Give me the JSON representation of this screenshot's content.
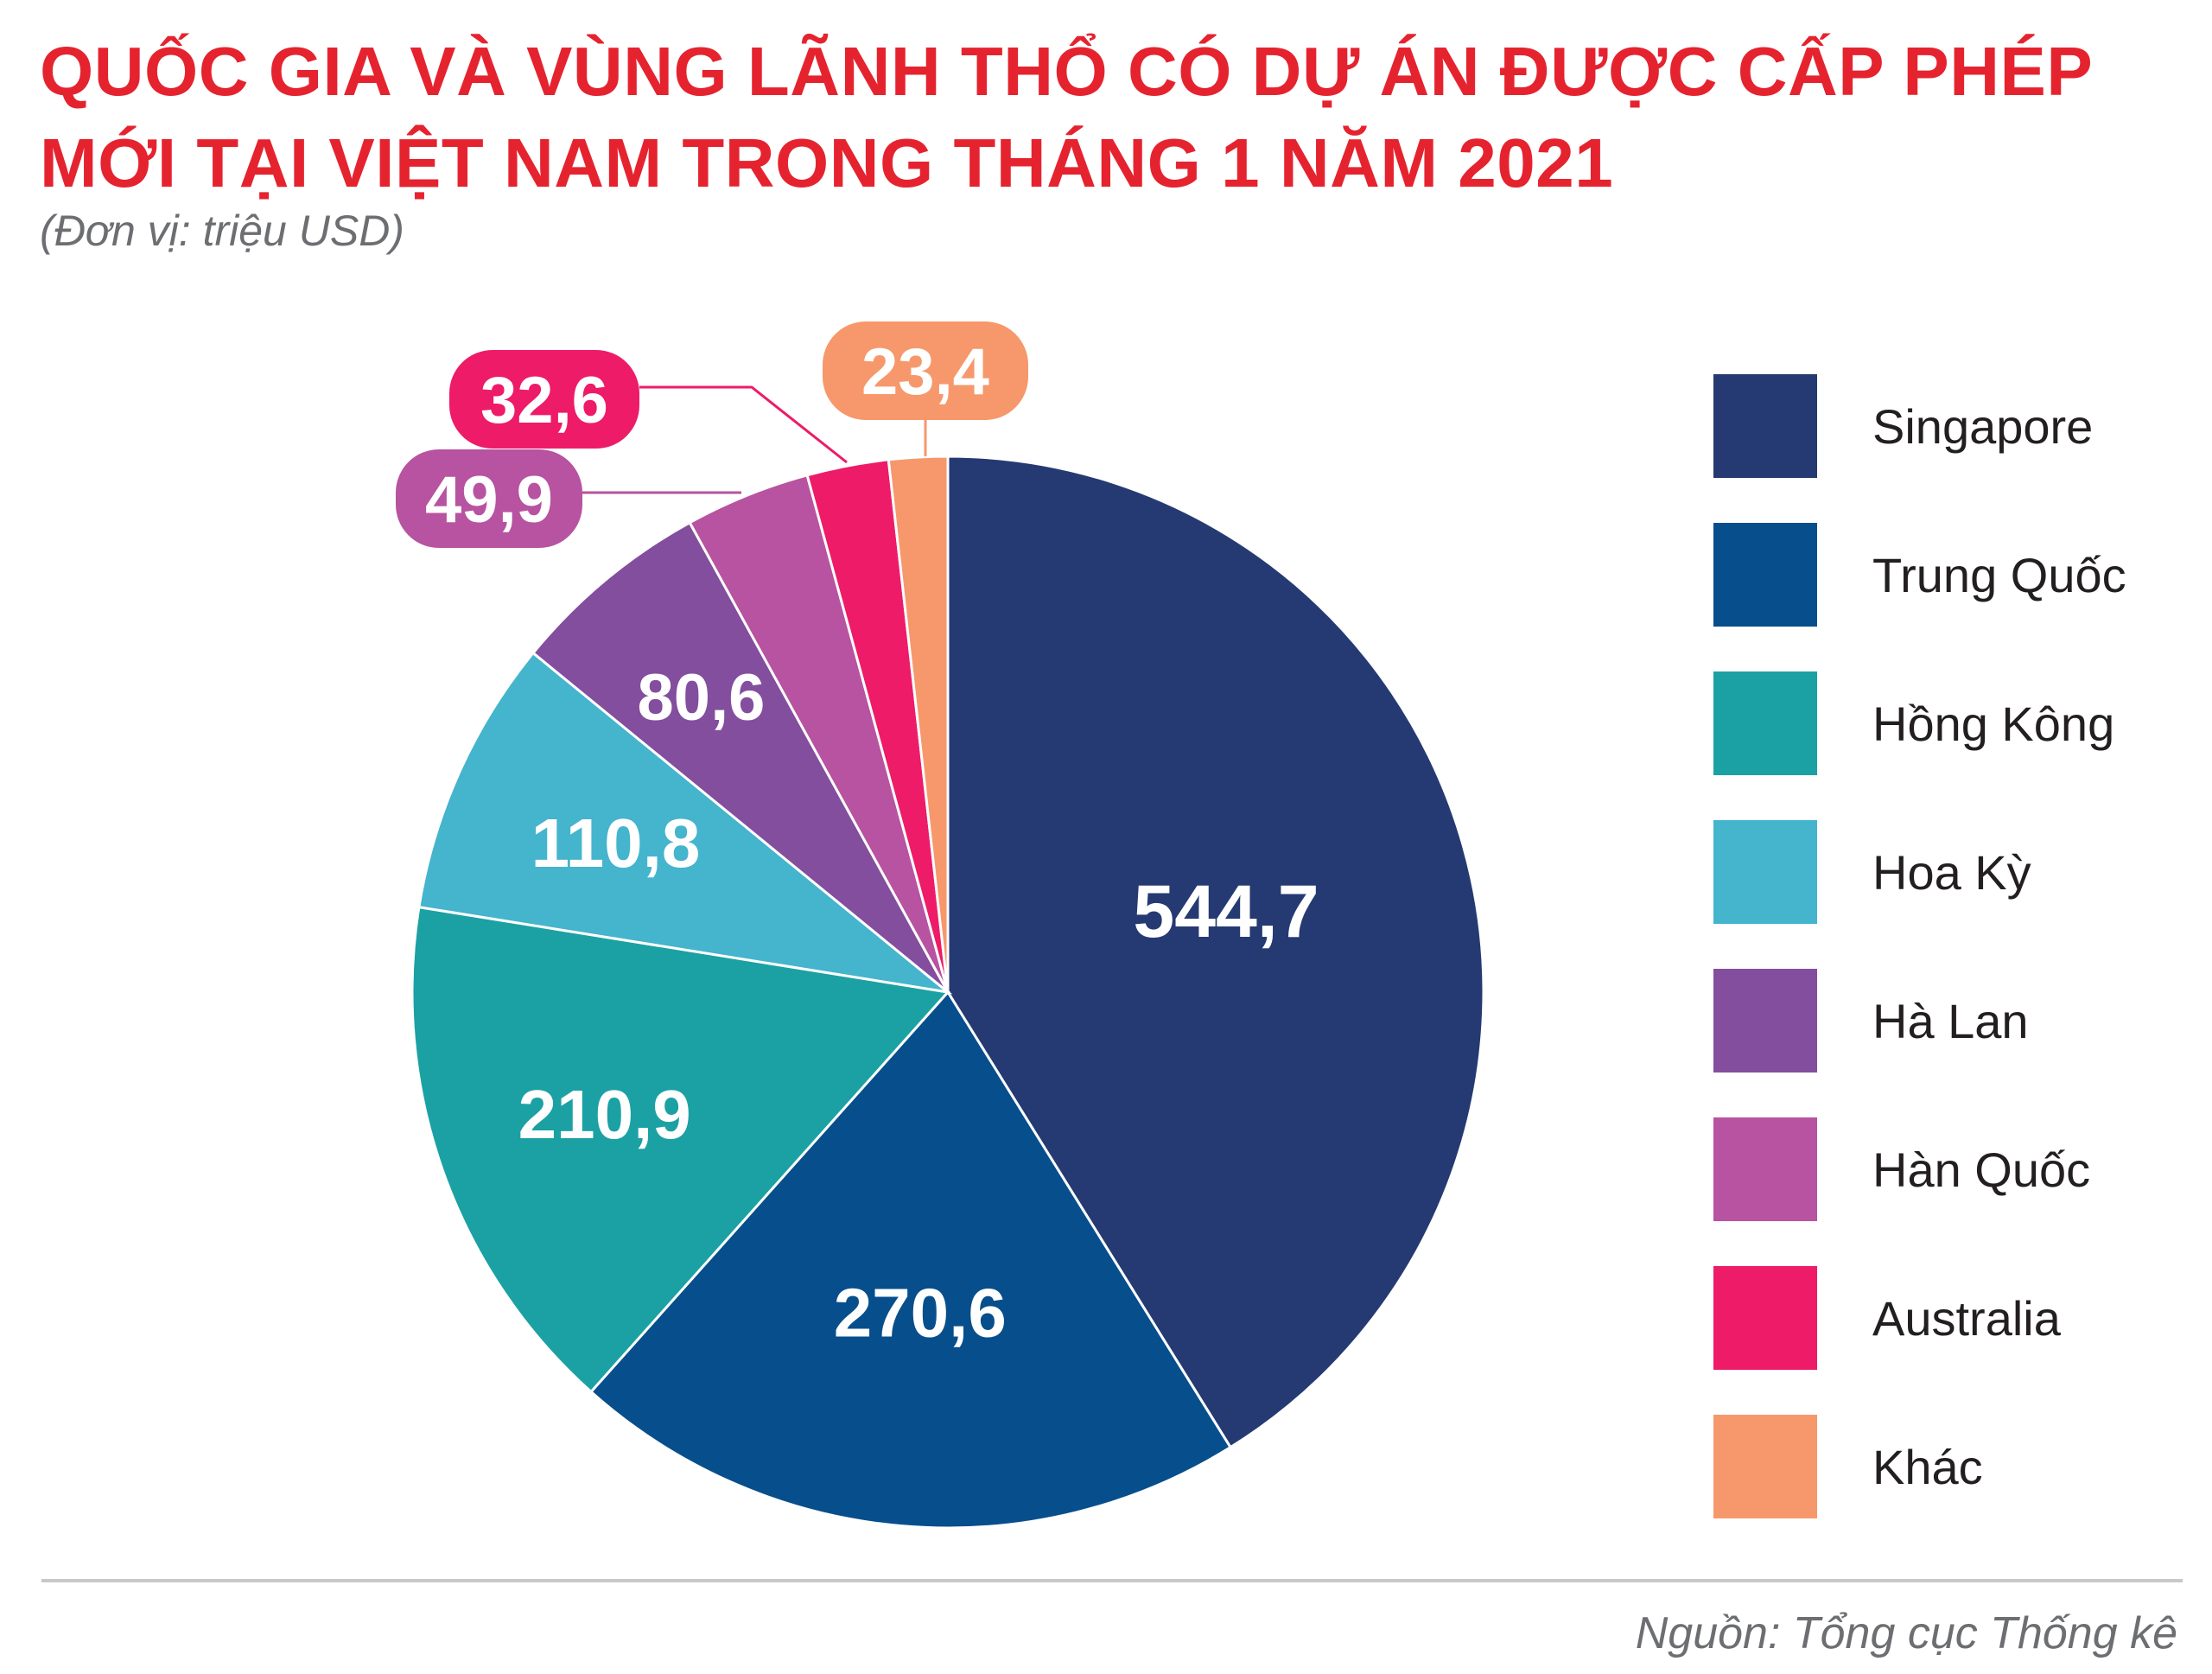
{
  "title": "QUỐC GIA VÀ VÙNG LÃNH THỔ CÓ DỰ ÁN ĐƯỢC CẤP PHÉP MỚI TẠI VIỆT NAM TRONG THÁNG 1 NĂM 2021",
  "subtitle": "(Đơn vị: triệu USD)",
  "source": "Nguồn: Tổng cục Thống kê",
  "chart_data": {
    "type": "pie",
    "title": "QUỐC GIA VÀ VÙNG LÃNH THỔ CÓ DỰ ÁN ĐƯỢC CẤP PHÉP MỚI TẠI VIỆT NAM TRONG THÁNG 1 NĂM 2021",
    "unit": "(Đơn vị: triệu USD)",
    "legend_position": "right",
    "categories": [
      "Singapore",
      "Trung Quốc",
      "Hồng Kông",
      "Hoa Kỳ",
      "Hà Lan",
      "Hàn Quốc",
      "Australia",
      "Khác"
    ],
    "values": [
      544.7,
      270.6,
      210.9,
      110.8,
      80.6,
      49.9,
      32.6,
      23.4
    ],
    "value_labels": [
      "544,7",
      "270,6",
      "210,9",
      "110,8",
      "80,6",
      "49,9",
      "32,6",
      "23,4"
    ],
    "colors": [
      "#253a72",
      "#074e8c",
      "#1ba1a3",
      "#45b4cd",
      "#834e9e",
      "#b753a0",
      "#ed1b68",
      "#f6986b"
    ]
  }
}
